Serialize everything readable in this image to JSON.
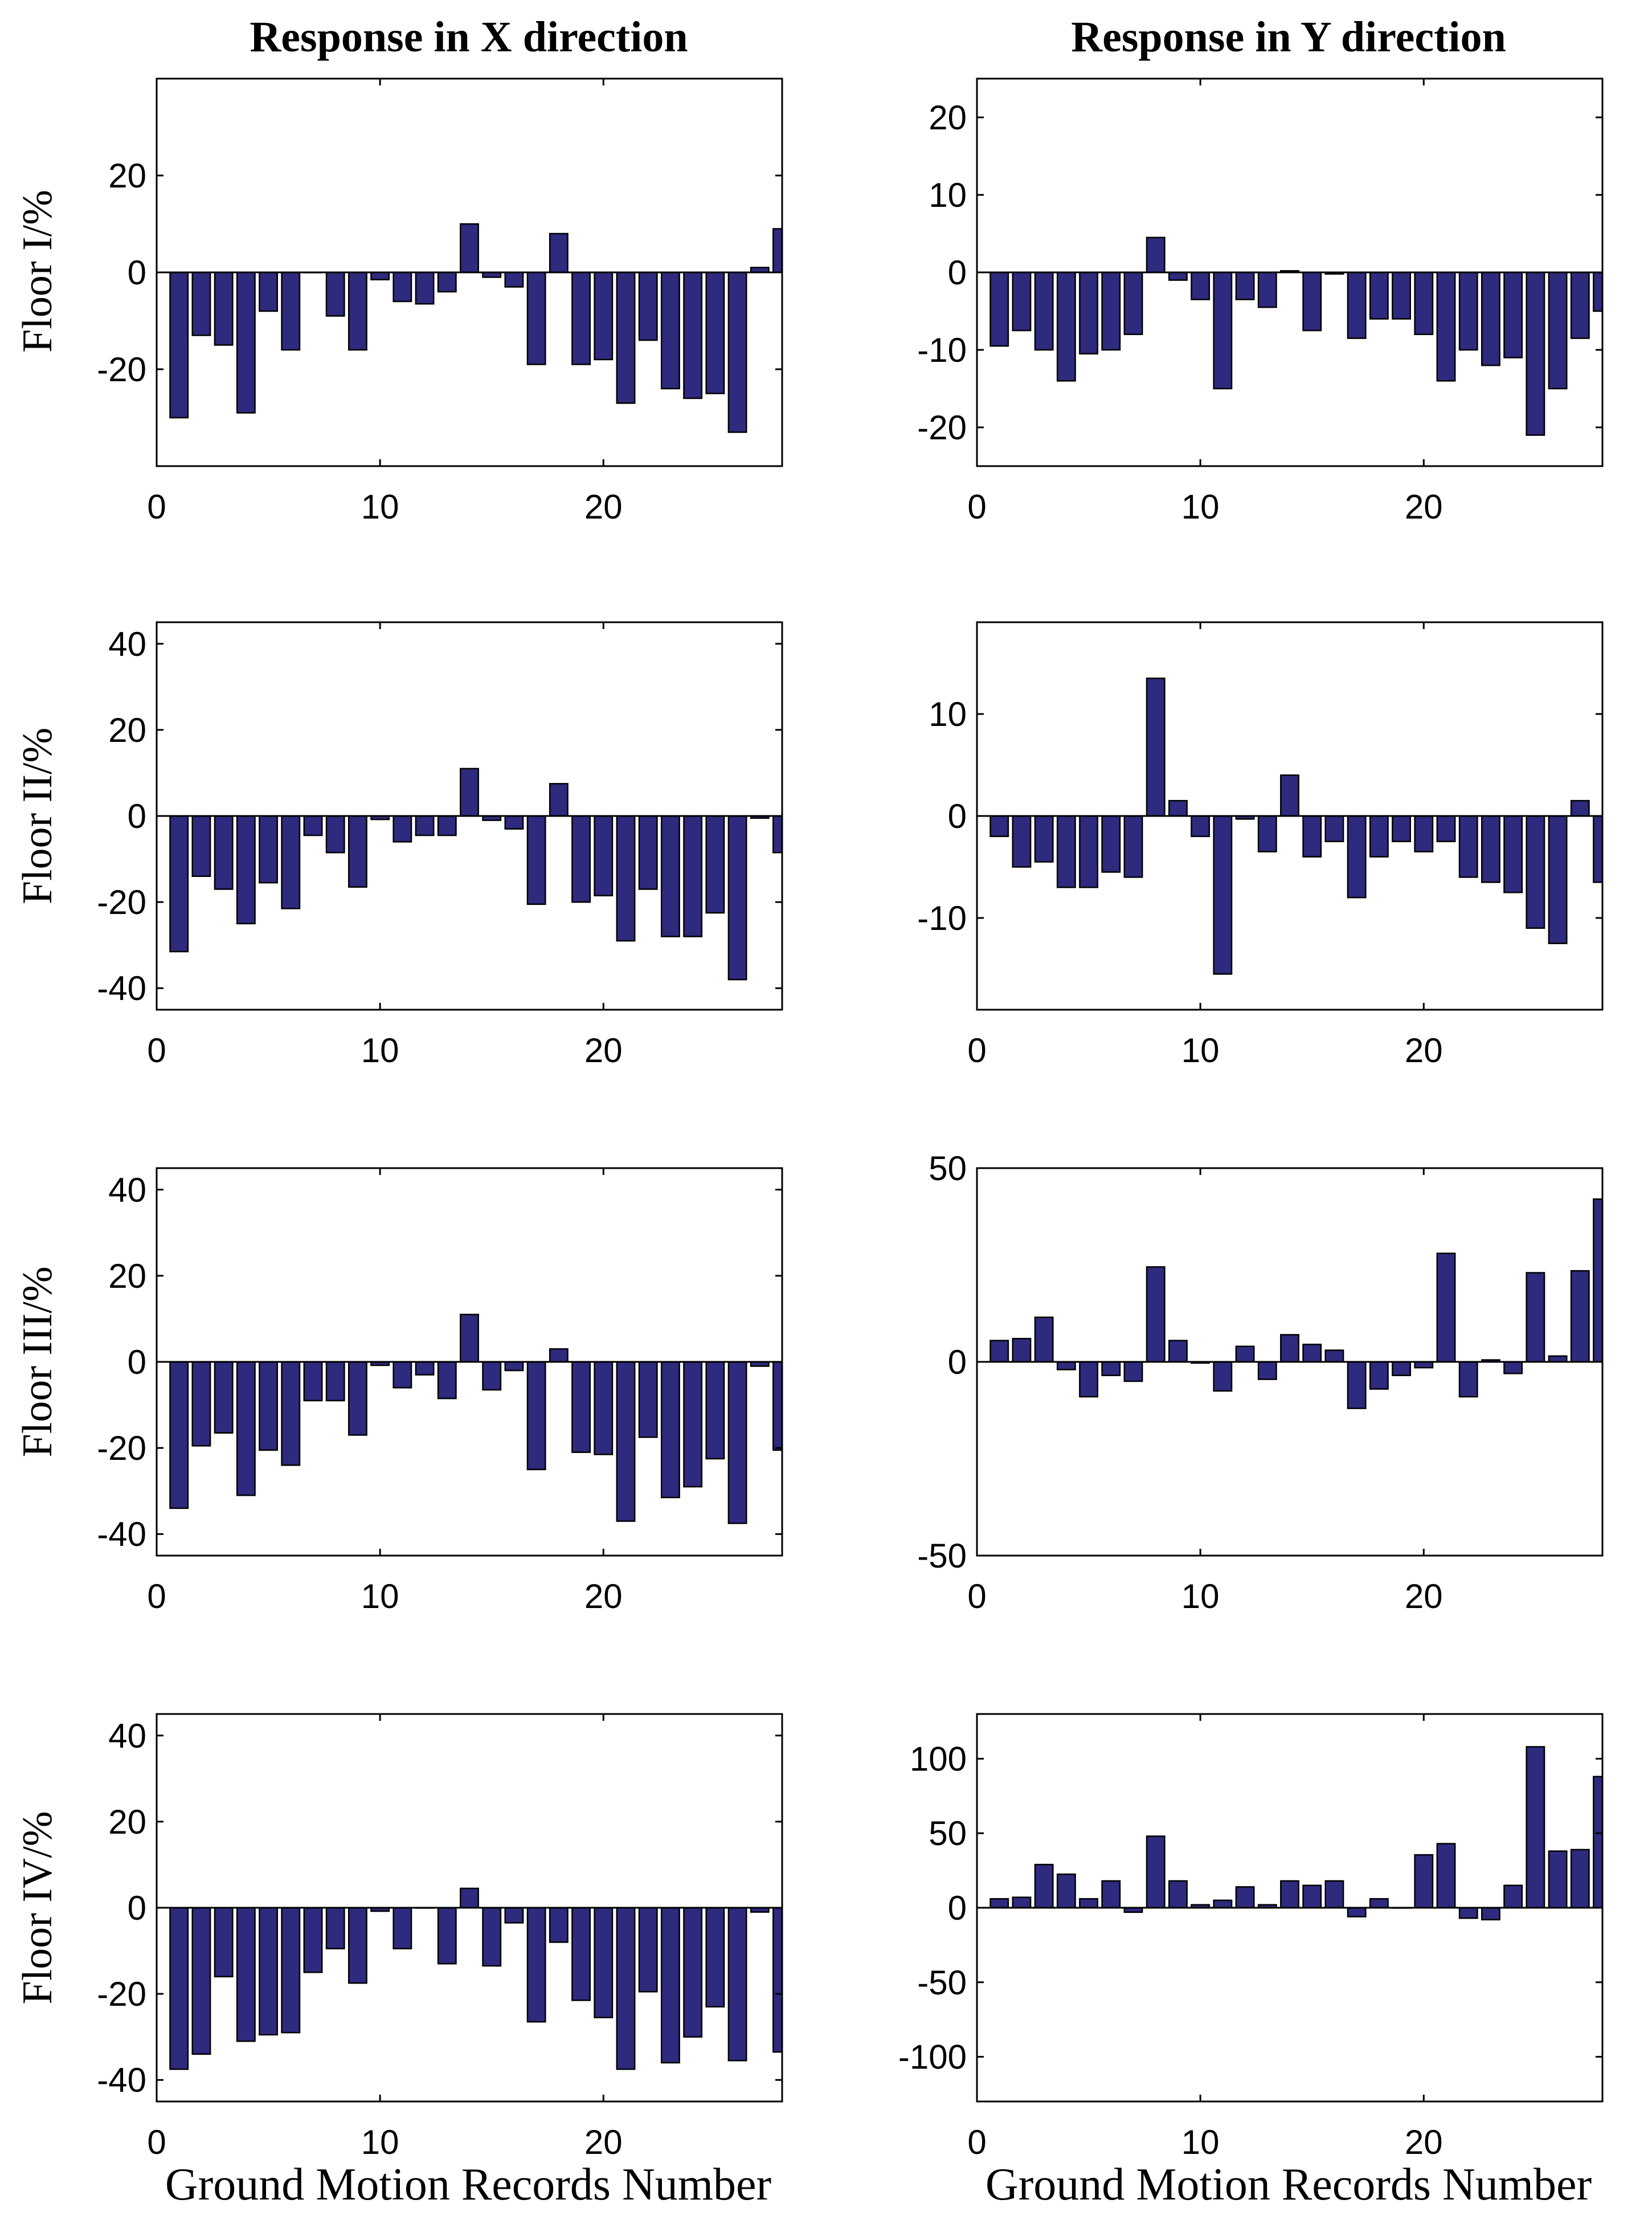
{
  "colors": {
    "bar_fill": "#2e2a7e",
    "axis": "#000000",
    "background": "#ffffff"
  },
  "figure": {
    "col_titles": [
      "Response in X direction",
      "Response in Y direction"
    ],
    "xlabel": "Ground Motion Records Number",
    "row_labels": [
      "Floor I/%",
      "Floor II/%",
      "Floor III/%",
      "Floor IV/%"
    ]
  },
  "chart_data": [
    {
      "type": "bar",
      "id": "floor1-x",
      "column": "Response in X direction",
      "ylabel": "Floor I/%",
      "xlabel": "",
      "xlim": [
        0,
        28
      ],
      "ylim": [
        -40,
        40
      ],
      "xticks": [
        0,
        10,
        20
      ],
      "yticks": [
        -20,
        0,
        20
      ],
      "categories": [
        1,
        2,
        3,
        4,
        5,
        6,
        7,
        8,
        9,
        10,
        11,
        12,
        13,
        14,
        15,
        16,
        17,
        18,
        19,
        20,
        21,
        22,
        23,
        24,
        25,
        26,
        27,
        28
      ],
      "values": [
        -30,
        -13,
        -15,
        -29,
        -8,
        -16,
        0,
        -9,
        -16,
        -1.5,
        -6,
        -6.5,
        -4,
        10,
        -1,
        -3,
        -19,
        8,
        -19,
        -18,
        -27,
        -14,
        -24,
        -26,
        -25,
        -33,
        1,
        9
      ]
    },
    {
      "type": "bar",
      "id": "floor1-y",
      "column": "Response in Y direction",
      "ylabel": "",
      "xlabel": "",
      "xlim": [
        0,
        28
      ],
      "ylim": [
        -25,
        25
      ],
      "xticks": [
        0,
        10,
        20
      ],
      "yticks": [
        -20,
        -10,
        0,
        10,
        20
      ],
      "categories": [
        1,
        2,
        3,
        4,
        5,
        6,
        7,
        8,
        9,
        10,
        11,
        12,
        13,
        14,
        15,
        16,
        17,
        18,
        19,
        20,
        21,
        22,
        23,
        24,
        25,
        26,
        27,
        28
      ],
      "values": [
        -9.5,
        -7.5,
        -10,
        -14,
        -10.5,
        -10,
        -8,
        4.5,
        -1,
        -3.5,
        -15,
        -3.5,
        -4.5,
        0.2,
        -7.5,
        -0.2,
        -8.5,
        -6,
        -6,
        -8,
        -14,
        -10,
        -12,
        -11,
        -21,
        -15,
        -8.5,
        -5
      ]
    },
    {
      "type": "bar",
      "id": "floor2-x",
      "column": "Response in X direction",
      "ylabel": "Floor II/%",
      "xlabel": "",
      "xlim": [
        0,
        28
      ],
      "ylim": [
        -45,
        45
      ],
      "xticks": [
        0,
        10,
        20
      ],
      "yticks": [
        -40,
        -20,
        0,
        20,
        40
      ],
      "categories": [
        1,
        2,
        3,
        4,
        5,
        6,
        7,
        8,
        9,
        10,
        11,
        12,
        13,
        14,
        15,
        16,
        17,
        18,
        19,
        20,
        21,
        22,
        23,
        24,
        25,
        26,
        27,
        28
      ],
      "values": [
        -31.5,
        -14,
        -17,
        -25,
        -15.5,
        -21.5,
        -4.5,
        -8.5,
        -16.5,
        -0.8,
        -6,
        -4.5,
        -4.5,
        11,
        -1,
        -3,
        -20.5,
        7.5,
        -20,
        -18.5,
        -29,
        -17,
        -28,
        -28,
        -22.5,
        -38,
        -0.5,
        -8.5
      ]
    },
    {
      "type": "bar",
      "id": "floor2-y",
      "column": "Response in Y direction",
      "ylabel": "",
      "xlabel": "",
      "xlim": [
        0,
        28
      ],
      "ylim": [
        -19,
        19
      ],
      "xticks": [
        0,
        10,
        20
      ],
      "yticks": [
        -10,
        0,
        10
      ],
      "categories": [
        1,
        2,
        3,
        4,
        5,
        6,
        7,
        8,
        9,
        10,
        11,
        12,
        13,
        14,
        15,
        16,
        17,
        18,
        19,
        20,
        21,
        22,
        23,
        24,
        25,
        26,
        27,
        28
      ],
      "values": [
        -2,
        -5,
        -4.5,
        -7,
        -7,
        -5.5,
        -6,
        13.5,
        1.5,
        -2,
        -15.5,
        -0.3,
        -3.5,
        4,
        -4,
        -2.5,
        -8,
        -4,
        -2.5,
        -3.5,
        -2.5,
        -6,
        -6.5,
        -7.5,
        -11,
        -12.5,
        1.5,
        -6.5
      ]
    },
    {
      "type": "bar",
      "id": "floor3-x",
      "column": "Response in X direction",
      "ylabel": "Floor III/%",
      "xlabel": "",
      "xlim": [
        0,
        28
      ],
      "ylim": [
        -45,
        45
      ],
      "xticks": [
        0,
        10,
        20
      ],
      "yticks": [
        -40,
        -20,
        0,
        20,
        40
      ],
      "categories": [
        1,
        2,
        3,
        4,
        5,
        6,
        7,
        8,
        9,
        10,
        11,
        12,
        13,
        14,
        15,
        16,
        17,
        18,
        19,
        20,
        21,
        22,
        23,
        24,
        25,
        26,
        27,
        28
      ],
      "values": [
        -34,
        -19.5,
        -16.5,
        -31,
        -20.5,
        -24,
        -9,
        -9,
        -17,
        -0.8,
        -6,
        -3,
        -8.5,
        11,
        -6.5,
        -2,
        -25,
        3,
        -21,
        -21.5,
        -37,
        -17.5,
        -31.5,
        -29,
        -22.5,
        -37.5,
        -1,
        -20.5
      ]
    },
    {
      "type": "bar",
      "id": "floor3-y",
      "column": "Response in Y direction",
      "ylabel": "",
      "xlabel": "",
      "xlim": [
        0,
        28
      ],
      "ylim": [
        -50,
        50
      ],
      "xticks": [
        0,
        10,
        20
      ],
      "yticks": [
        -50,
        0,
        50
      ],
      "categories": [
        1,
        2,
        3,
        4,
        5,
        6,
        7,
        8,
        9,
        10,
        11,
        12,
        13,
        14,
        15,
        16,
        17,
        18,
        19,
        20,
        21,
        22,
        23,
        24,
        25,
        26,
        27,
        28
      ],
      "values": [
        5.5,
        6,
        11.5,
        -2,
        -9,
        -3.5,
        -5,
        24.5,
        5.5,
        -0.3,
        -7.5,
        4,
        -4.5,
        7,
        4.5,
        3,
        -12,
        -7,
        -3.5,
        -1.5,
        28,
        -9,
        0.5,
        -3,
        23,
        1.5,
        23.5,
        42
      ]
    },
    {
      "type": "bar",
      "id": "floor4-x",
      "column": "Response in X direction",
      "ylabel": "Floor IV/%",
      "xlabel": "Ground Motion Records Number",
      "xlim": [
        0,
        28
      ],
      "ylim": [
        -45,
        45
      ],
      "xticks": [
        0,
        10,
        20
      ],
      "yticks": [
        -40,
        -20,
        0,
        20,
        40
      ],
      "categories": [
        1,
        2,
        3,
        4,
        5,
        6,
        7,
        8,
        9,
        10,
        11,
        12,
        13,
        14,
        15,
        16,
        17,
        18,
        19,
        20,
        21,
        22,
        23,
        24,
        25,
        26,
        27,
        28
      ],
      "values": [
        -37.5,
        -34,
        -16,
        -31,
        -29.5,
        -29,
        -15,
        -9.5,
        -17.5,
        -0.8,
        -9.5,
        0,
        -13,
        4.5,
        -13.5,
        -3.5,
        -26.5,
        -8,
        -21.5,
        -25.5,
        -37.5,
        -19.5,
        -36,
        -30,
        -23,
        -35.5,
        -1,
        -33.5
      ]
    },
    {
      "type": "bar",
      "id": "floor4-y",
      "column": "Response in Y direction",
      "ylabel": "",
      "xlabel": "Ground Motion Records Number",
      "xlim": [
        0,
        28
      ],
      "ylim": [
        -130,
        130
      ],
      "xticks": [
        0,
        10,
        20
      ],
      "yticks": [
        -100,
        -50,
        0,
        50,
        100
      ],
      "categories": [
        1,
        2,
        3,
        4,
        5,
        6,
        7,
        8,
        9,
        10,
        11,
        12,
        13,
        14,
        15,
        16,
        17,
        18,
        19,
        20,
        21,
        22,
        23,
        24,
        25,
        26,
        27,
        28
      ],
      "values": [
        6,
        7,
        29,
        22.5,
        6,
        18,
        -3,
        48,
        18,
        2,
        5,
        14,
        2,
        18,
        15,
        18,
        -6,
        6,
        0,
        35.5,
        43,
        -7,
        -8,
        15,
        108,
        38,
        39,
        88
      ]
    }
  ]
}
